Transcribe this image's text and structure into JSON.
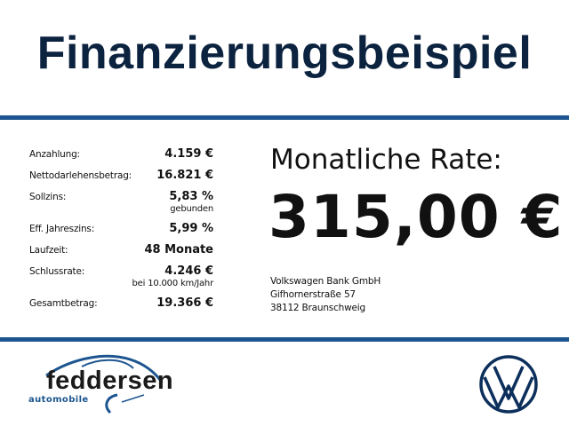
{
  "title": "Finanzierungsbeispiel",
  "details": [
    {
      "label": "Anzahlung:",
      "value": "4.159 €",
      "note": ""
    },
    {
      "label": "Nettodarlehensbetrag:",
      "value": "16.821 €",
      "note": ""
    },
    {
      "label": "Sollzins:",
      "value": "5,83 %",
      "note": "gebunden"
    },
    {
      "label": "Eff. Jahreszins:",
      "value": "5,99 %",
      "note": ""
    },
    {
      "label": "Laufzeit:",
      "value": "48 Monate",
      "note": ""
    },
    {
      "label": "Schlussrate:",
      "value": "4.246 €",
      "note": "bei 10.000 km/Jahr"
    },
    {
      "label": "Gesamtbetrag:",
      "value": "19.366 €",
      "note": ""
    }
  ],
  "rate": {
    "label": "Monatliche Rate:",
    "value": "315,00 €"
  },
  "bank": {
    "name": "Volkswagen Bank GmbH",
    "street": "Gifhornerstraße 57",
    "city": "38112 Braunschweig"
  },
  "dealer_logo": {
    "name": "feddersen",
    "tagline": "automobile"
  },
  "colors": {
    "title": "#0c2340",
    "rule": "#1d5590",
    "vw_logo": "#0c2f5c"
  }
}
